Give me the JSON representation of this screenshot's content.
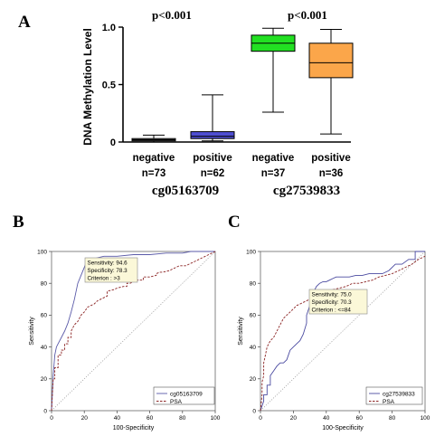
{
  "panels": {
    "a": "A",
    "b": "B",
    "c": "C"
  },
  "boxplot": {
    "ylabel": "DNA Methylation Level",
    "yticks": [
      "0",
      "0.5",
      "1.0"
    ],
    "yticks_values": [
      0,
      0.5,
      1.0
    ],
    "ylim": [
      0,
      1.0
    ],
    "pvalues": [
      "p<0.001",
      "p<0.001"
    ],
    "groups": [
      {
        "label": "negative",
        "n": "n=73",
        "color": "#808080",
        "whisker_low": 0.0,
        "q1": 0.01,
        "median": 0.02,
        "q3": 0.03,
        "whisker_high": 0.06
      },
      {
        "label": "positive",
        "n": "n=62",
        "color": "#4e4ed2",
        "whisker_low": 0.01,
        "q1": 0.03,
        "median": 0.05,
        "q3": 0.09,
        "whisker_high": 0.41
      },
      {
        "label": "negative",
        "n": "n=37",
        "color": "#22e022",
        "whisker_low": 0.26,
        "q1": 0.79,
        "median": 0.86,
        "q3": 0.93,
        "whisker_high": 0.99
      },
      {
        "label": "positive",
        "n": "n=36",
        "color": "#fba64a",
        "whisker_low": 0.07,
        "q1": 0.56,
        "median": 0.69,
        "q3": 0.86,
        "whisker_high": 0.98
      }
    ],
    "markers": [
      "cg05163709",
      "cg27539833"
    ]
  },
  "chart_data": [
    {
      "type": "bar",
      "categories": [
        "negative",
        "positive",
        "negative",
        "positive"
      ],
      "ylabel": "DNA Methylation Level",
      "ylim": [
        0,
        1.0
      ]
    },
    {
      "type": "line",
      "xlabel": "100-Specificity",
      "ylabel": "Sensitivity",
      "xlim": [
        0,
        100
      ],
      "ylim": [
        0,
        100
      ],
      "ticks": [
        "0",
        "20",
        "40",
        "60",
        "80",
        "100"
      ],
      "ticks_values": [
        0,
        20,
        40,
        60,
        80,
        100
      ],
      "annotation": [
        "Sensitivity: 94.6",
        "Specificity: 78.3",
        "Criterion : >3"
      ],
      "series": [
        {
          "name": "cg05163709",
          "color": "#5a5aa8",
          "dash": false,
          "x": [
            0,
            1,
            2,
            3,
            4,
            6,
            8,
            10,
            12,
            14,
            16,
            18,
            20,
            21.7,
            24,
            28,
            32,
            36,
            40,
            50,
            60,
            70,
            80,
            85,
            90,
            95,
            100
          ],
          "y": [
            0,
            22,
            35,
            40,
            42,
            46,
            50,
            55,
            62,
            70,
            80,
            85,
            90,
            94.6,
            95,
            96,
            97,
            97,
            97,
            98,
            98,
            99,
            99,
            100,
            100,
            100,
            100
          ]
        },
        {
          "name": "PSA",
          "color": "#8b2323",
          "dash": true,
          "x": [
            0,
            1,
            2,
            2,
            4,
            4,
            6,
            6,
            8,
            8,
            10,
            10,
            12,
            12,
            14,
            16,
            18,
            20,
            22,
            24,
            26,
            28,
            30,
            34,
            34,
            38,
            40,
            44,
            46,
            46,
            48,
            50,
            52,
            56,
            56,
            60,
            64,
            64,
            66,
            68,
            72,
            76,
            78,
            82,
            86,
            88,
            90,
            92,
            94,
            96,
            98,
            100
          ],
          "y": [
            0,
            20,
            20,
            27,
            27,
            35,
            35,
            38,
            38,
            42,
            42,
            46,
            46,
            50,
            54,
            56,
            60,
            62,
            65,
            66,
            67,
            69,
            70,
            72,
            75,
            76,
            77,
            78,
            78,
            80,
            80,
            81,
            82,
            82,
            84,
            84,
            85,
            86,
            87,
            87,
            88,
            90,
            91,
            91,
            93,
            94,
            95,
            96,
            97,
            98,
            99,
            100
          ]
        }
      ]
    },
    {
      "type": "line",
      "xlabel": "100-Specificity",
      "ylabel": "Sensitivity",
      "xlim": [
        0,
        100
      ],
      "ylim": [
        0,
        100
      ],
      "ticks": [
        "0",
        "20",
        "40",
        "60",
        "80",
        "100"
      ],
      "ticks_values": [
        0,
        20,
        40,
        60,
        80,
        100
      ],
      "annotation": [
        "Sensitivity: 75.0",
        "Specificity: 70.3",
        "Criterion : <=84"
      ],
      "series": [
        {
          "name": "cg27539833",
          "color": "#4a4aa0",
          "dash": false,
          "x": [
            0,
            2,
            2,
            4,
            4,
            6,
            6,
            8,
            10,
            12,
            14,
            16,
            18,
            20,
            22,
            24,
            26,
            28,
            28,
            30,
            31,
            33,
            34,
            36,
            38,
            40,
            42,
            44,
            46,
            50,
            54,
            58,
            62,
            66,
            70,
            74,
            78,
            82,
            86,
            90,
            94,
            94,
            98,
            100
          ],
          "y": [
            0,
            6,
            10,
            10,
            16,
            16,
            22,
            25,
            28,
            30,
            30,
            32,
            38,
            40,
            42,
            44,
            48,
            55,
            60,
            66,
            75,
            76,
            78,
            80,
            81,
            81,
            82,
            83,
            84,
            84,
            84,
            85,
            85,
            86,
            86,
            86,
            88,
            92,
            92,
            95,
            95,
            100,
            100,
            100
          ]
        },
        {
          "name": "PSA",
          "color": "#8b2323",
          "dash": true,
          "x": [
            0,
            1,
            1,
            2,
            2,
            3,
            4,
            6,
            8,
            10,
            12,
            14,
            16,
            18,
            20,
            22,
            24,
            26,
            30,
            34,
            36,
            38,
            40,
            44,
            48,
            52,
            56,
            60,
            64,
            68,
            72,
            76,
            80,
            84,
            88,
            92,
            96,
            100
          ],
          "y": [
            0,
            10,
            18,
            22,
            30,
            35,
            40,
            44,
            46,
            50,
            54,
            58,
            60,
            62,
            64,
            66,
            67,
            68,
            70,
            72,
            72,
            73,
            74,
            76,
            77,
            78,
            80,
            80,
            81,
            82,
            84,
            85,
            86,
            88,
            90,
            92,
            95,
            97
          ]
        }
      ]
    }
  ]
}
